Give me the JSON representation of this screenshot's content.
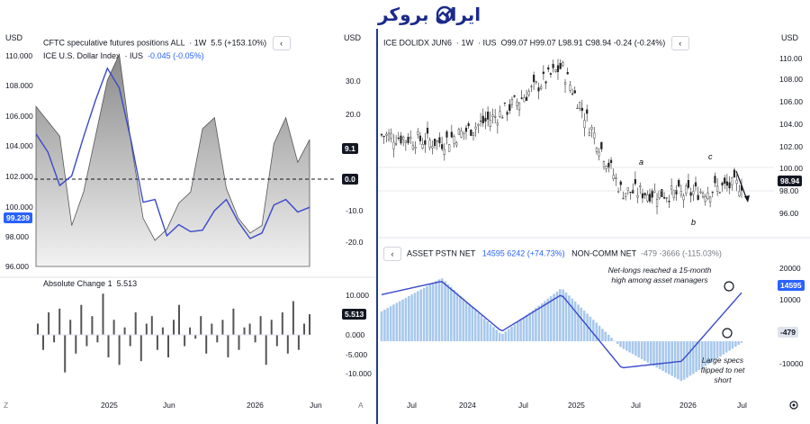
{
  "brand": {
    "logo_text": "ایران بروکر",
    "accent": "#1b2a8a"
  },
  "left_panel": {
    "currency_left": "USD",
    "currency_right": "USD",
    "legend1": {
      "name": "CFTC speculative futures positions ALL",
      "interval": "1W",
      "value": "5.5",
      "change": "(+153.10%)"
    },
    "legend2": {
      "name": "ICE U.S. Dollar Index",
      "exchange": "IUS",
      "change": "-0.045 (-0.05%)"
    },
    "left_axis": [
      "110.000",
      "108.000",
      "106.000",
      "104.000",
      "102.000",
      "100.000",
      "98.000",
      "96.000"
    ],
    "right_axis": [
      "30.0",
      "20.0",
      "10.0",
      "0.0",
      "-10.0",
      "-20.0"
    ],
    "price_tag": "99.239",
    "spec_tag": "9.1",
    "zero_tag": "0.0",
    "sub_legend": {
      "name": "Absolute Change",
      "period": "1",
      "value": "5.513"
    },
    "sub_axis": [
      "10.000",
      "5.000",
      "0.000",
      "-5.000",
      "-10.000"
    ],
    "sub_tag": "5.513",
    "x_axis": [
      "2025",
      "Jun",
      "2026",
      "Jun"
    ],
    "corner_left": "Z",
    "corner_right": "A"
  },
  "right_panel": {
    "currency": "USD",
    "legend": {
      "symbol": "ICE DOLIDX JUN6",
      "interval": "1W",
      "exchange": "IUS",
      "open": "O99.07",
      "high": "H99.07",
      "low": "L98.91",
      "close": "C98.94",
      "change": "-0.24 (-0.24%)"
    },
    "price_axis": [
      "110.00",
      "108.00",
      "106.00",
      "104.00",
      "102.00",
      "100.00",
      "98.00",
      "96.00"
    ],
    "price_tag": "98.94",
    "wave_labels": [
      "a",
      "b",
      "c"
    ],
    "sub_legend": {
      "name1": "ASSET PSTN NET",
      "v1": "14595",
      "v1b": "6242 (+74.73%)",
      "name2": "NON-COMM NET",
      "v2": "-479",
      "v2b": "-3666 (-115.03%)"
    },
    "sub_axis": [
      "20000",
      "10000",
      "-10000"
    ],
    "tag_asset": "14595",
    "tag_noncomm": "-479",
    "annotation_top": "Net-longs reached a 15-month high among asset managers",
    "annotation_bottom": "Large specs flipped to net short",
    "x_axis": [
      "Jul",
      "2024",
      "Jul",
      "2025",
      "Jul",
      "2026",
      "Jul"
    ]
  },
  "colors": {
    "blue": "#2962ff",
    "line_blue": "#3a49c9",
    "grey_fill": "#a9a9a9",
    "light_blue_bar": "#a8c8ec",
    "dark_tag": "#131722"
  },
  "chart_data": [
    {
      "type": "area",
      "title": "CFTC speculative futures positions ALL vs ICE U.S. Dollar Index",
      "x": [
        "2024-07",
        "2024-08",
        "2024-09",
        "2024-10",
        "2024-11",
        "2024-12",
        "2025-01",
        "2025-02",
        "2025-03",
        "2025-04",
        "2025-05",
        "2025-06",
        "2025-07",
        "2025-08",
        "2025-09",
        "2025-10",
        "2025-11",
        "2025-12",
        "2026-01",
        "2026-02",
        "2026-03",
        "2026-04",
        "2026-05",
        "2026-06"
      ],
      "series": [
        {
          "name": "CFTC speculative futures positions ALL",
          "axis": "right",
          "values": [
            18,
            14,
            10,
            -14,
            -5,
            10,
            25,
            32,
            8,
            -12,
            -18,
            -15,
            -8,
            -5,
            12,
            15,
            -4,
            -12,
            -16,
            -14,
            8,
            15,
            3,
            9.1
          ]
        },
        {
          "name": "ICE U.S. Dollar Index",
          "axis": "left",
          "values": [
            104.5,
            103.2,
            100.8,
            101.5,
            104.3,
            106.9,
            109.2,
            107.8,
            104.0,
            99.6,
            99.8,
            97.2,
            98.0,
            97.5,
            97.6,
            99.0,
            99.8,
            98.2,
            97.0,
            97.4,
            99.4,
            99.8,
            98.9,
            99.239
          ]
        }
      ],
      "ylim_left": [
        95,
        111
      ],
      "ylim_right": [
        -25,
        35
      ]
    },
    {
      "type": "bar",
      "title": "Absolute Change 1",
      "series": [
        {
          "name": "Absolute Change",
          "values": [
            3,
            -4,
            6,
            -2,
            7,
            -10,
            4,
            -5,
            8,
            -3,
            5,
            -2,
            11,
            -6,
            4,
            -8,
            2,
            -3,
            6,
            -7,
            3,
            5,
            -4,
            2,
            -6,
            4,
            8,
            -3,
            2,
            -1,
            5,
            -5,
            3,
            -2,
            4,
            -6,
            7,
            -4,
            2,
            3,
            -2,
            5,
            -8,
            4,
            -3,
            6,
            -5,
            9,
            -4,
            3,
            5.513
          ]
        }
      ],
      "ylim": [
        -12,
        12
      ]
    },
    {
      "type": "bar",
      "title": "ICE DOLIDX JUN6 — ASSET PSTN NET / NON-COMM NET",
      "x": [
        "2023-07",
        "2024-01",
        "2024-07",
        "2025-01",
        "2025-07",
        "2026-01",
        "2026-06"
      ],
      "series": [
        {
          "name": "ICE DOLIDX JUN6",
          "values": [
            103.5,
            102.8,
            105.5,
            109.8,
            98.3,
            98.0,
            98.94
          ]
        },
        {
          "name": "ASSET PSTN NET",
          "values": [
            14000,
            18000,
            3000,
            14000,
            -8000,
            -6000,
            14595
          ]
        },
        {
          "name": "NON-COMM NET",
          "values": [
            9000,
            19000,
            2000,
            16000,
            -2000,
            -12000,
            -479
          ]
        }
      ],
      "ylim_price": [
        95,
        111
      ],
      "ylim_positions": [
        -17000,
        23000
      ]
    }
  ]
}
